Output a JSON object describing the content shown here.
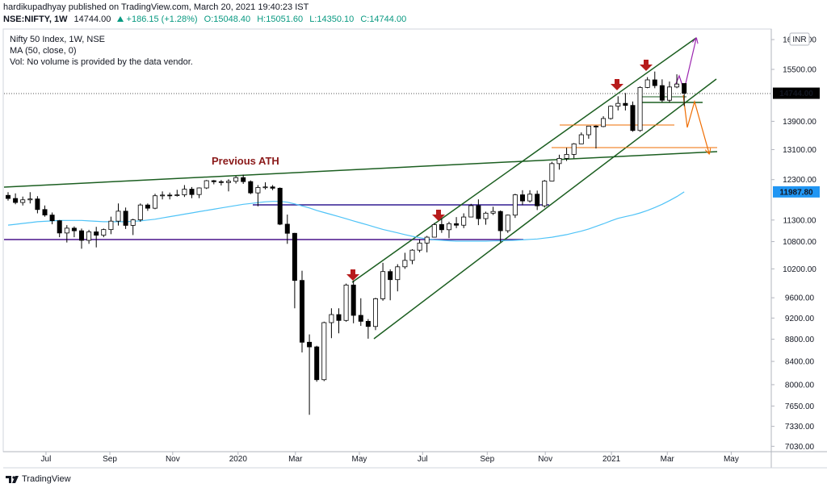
{
  "header": {
    "published": "hardikupadhyay published on TradingView.com, March 20, 2021 19:40:23 IST",
    "symbol": "NSE:NIFTY, 1W",
    "last": "14744.00",
    "change": "+186.15 (+1.28%)",
    "open": "O:15048.40",
    "high": "H:15051.60",
    "low": "L:14350.10",
    "close": "C:14744.00"
  },
  "chart_data": {
    "type": "candlestick",
    "title": "Nifty 50 Index, 1W, NSE",
    "volume_note": "Vol: No volume is provided by the data vendor.",
    "currency": "INR",
    "log": true,
    "grid": false,
    "ylim": [
      6951,
      16869
    ],
    "yticks": [
      {
        "value": 16500,
        "label": "16500.00"
      },
      {
        "value": 15500,
        "label": "15500.00"
      },
      {
        "value": 13900,
        "label": "13900.00"
      },
      {
        "value": 13100,
        "label": "13100.00"
      },
      {
        "value": 12300,
        "label": "12300.00"
      },
      {
        "value": 11300,
        "label": "11300.00"
      },
      {
        "value": 10800,
        "label": "10800.00"
      },
      {
        "value": 10200,
        "label": "10200.00"
      },
      {
        "value": 9600,
        "label": "9600.00"
      },
      {
        "value": 9200,
        "label": "9200.00"
      },
      {
        "value": 8800,
        "label": "8800.00"
      },
      {
        "value": 8400,
        "label": "8400.00"
      },
      {
        "value": 8000,
        "label": "8000.00"
      },
      {
        "value": 7650,
        "label": "7650.00"
      },
      {
        "value": 7330,
        "label": "7330.00"
      },
      {
        "value": 7030,
        "label": "7030.00"
      }
    ],
    "xlim": [
      -0.55,
      103.85
    ],
    "xticks": [
      {
        "value": 5.16,
        "label": "Jul"
      },
      {
        "value": 13.85,
        "label": "Sep"
      },
      {
        "value": 22.4,
        "label": "Nov"
      },
      {
        "value": 31.3,
        "label": "2020"
      },
      {
        "value": 39.1,
        "label": "Mar"
      },
      {
        "value": 47.8,
        "label": "May"
      },
      {
        "value": 56.4,
        "label": "Jul"
      },
      {
        "value": 65.2,
        "label": "Sep"
      },
      {
        "value": 73.1,
        "label": "Nov"
      },
      {
        "value": 82.1,
        "label": "2021"
      },
      {
        "value": 89.7,
        "label": "Mar"
      },
      {
        "value": 98.4,
        "label": "May"
      }
    ],
    "up_color": "#ffffff",
    "down_color": "#000000",
    "wick_color": "#000000",
    "ohlc": [
      [
        11900,
        11980,
        11770,
        11823
      ],
      [
        11823,
        11950,
        11680,
        11724
      ],
      [
        11724,
        11870,
        11650,
        11789
      ],
      [
        11789,
        11980,
        11700,
        11811
      ],
      [
        11811,
        11880,
        11460,
        11552
      ],
      [
        11552,
        11650,
        11380,
        11419
      ],
      [
        11419,
        11480,
        11200,
        11284
      ],
      [
        11284,
        11300,
        10900,
        10997
      ],
      [
        10997,
        11180,
        10780,
        11109
      ],
      [
        11109,
        11150,
        10900,
        11048
      ],
      [
        11048,
        11100,
        10640,
        10829
      ],
      [
        10829,
        11070,
        10750,
        11023
      ],
      [
        11023,
        11140,
        10670,
        10946
      ],
      [
        10946,
        11100,
        10900,
        11076
      ],
      [
        11076,
        11380,
        10970,
        11274
      ],
      [
        11274,
        11700,
        11170,
        11512
      ],
      [
        11512,
        11600,
        11090,
        11174
      ],
      [
        11174,
        11330,
        10950,
        11305
      ],
      [
        11305,
        11700,
        11260,
        11662
      ],
      [
        11662,
        11700,
        11520,
        11584
      ],
      [
        11584,
        11940,
        11560,
        11890
      ],
      [
        11890,
        12000,
        11800,
        11908
      ],
      [
        11908,
        11970,
        11800,
        11895
      ],
      [
        11895,
        12040,
        11870,
        11914
      ],
      [
        11914,
        12160,
        11860,
        12056
      ],
      [
        12056,
        12110,
        11830,
        11921
      ],
      [
        11921,
        12100,
        11830,
        12087
      ],
      [
        12087,
        12290,
        12060,
        12272
      ],
      [
        12272,
        12290,
        12180,
        12246
      ],
      [
        12246,
        12290,
        12150,
        12226
      ],
      [
        12226,
        12310,
        12000,
        12257
      ],
      [
        12257,
        12390,
        12200,
        12352
      ],
      [
        12352,
        12430,
        12190,
        12248
      ],
      [
        12248,
        12280,
        11930,
        11962
      ],
      [
        11962,
        12160,
        11630,
        12098
      ],
      [
        12098,
        12230,
        12050,
        12113
      ],
      [
        12113,
        12160,
        12030,
        12080
      ],
      [
        12080,
        12100,
        11180,
        11202
      ],
      [
        11202,
        11430,
        10750,
        10990
      ],
      [
        10990,
        11000,
        9390,
        9955
      ],
      [
        9955,
        10160,
        8560,
        8745
      ],
      [
        8745,
        8890,
        7510,
        8660
      ],
      [
        8660,
        8680,
        8050,
        8084
      ],
      [
        8084,
        9130,
        8060,
        9112
      ],
      [
        9112,
        9390,
        8820,
        9267
      ],
      [
        9267,
        9390,
        8910,
        9154
      ],
      [
        9154,
        9890,
        9130,
        9860
      ],
      [
        9860,
        9950,
        9100,
        9252
      ],
      [
        9252,
        9590,
        9050,
        9137
      ],
      [
        9137,
        9180,
        8810,
        9039
      ],
      [
        9039,
        9600,
        8970,
        9580
      ],
      [
        9580,
        10330,
        9540,
        10142
      ],
      [
        10142,
        10190,
        9550,
        9972
      ],
      [
        9972,
        10300,
        9730,
        10244
      ],
      [
        10244,
        10550,
        10200,
        10383
      ],
      [
        10383,
        10630,
        10300,
        10608
      ],
      [
        10608,
        10850,
        10560,
        10768
      ],
      [
        10768,
        10930,
        10560,
        10901
      ],
      [
        10901,
        11230,
        10900,
        11194
      ],
      [
        11194,
        11340,
        11000,
        11073
      ],
      [
        11073,
        11260,
        10880,
        11214
      ],
      [
        11214,
        11370,
        11110,
        11178
      ],
      [
        11178,
        11460,
        11110,
        11372
      ],
      [
        11372,
        11690,
        11370,
        11647
      ],
      [
        11647,
        11800,
        11180,
        11333
      ],
      [
        11333,
        11500,
        11190,
        11464
      ],
      [
        11464,
        11620,
        11420,
        11505
      ],
      [
        11505,
        11530,
        10790,
        11050
      ],
      [
        11050,
        11430,
        11000,
        11417
      ],
      [
        11417,
        11940,
        11350,
        11914
      ],
      [
        11914,
        12030,
        11660,
        11762
      ],
      [
        11762,
        12030,
        11720,
        11930
      ],
      [
        11930,
        12020,
        11540,
        11642
      ],
      [
        11642,
        12290,
        11600,
        12263
      ],
      [
        12263,
        12770,
        12260,
        12720
      ],
      [
        12720,
        12960,
        12560,
        12859
      ],
      [
        12859,
        13150,
        12790,
        12968
      ],
      [
        12968,
        13280,
        12860,
        13258
      ],
      [
        13258,
        13580,
        13260,
        13514
      ],
      [
        13514,
        13770,
        13400,
        13761
      ],
      [
        13761,
        13780,
        13130,
        13749
      ],
      [
        13749,
        14050,
        13730,
        13982
      ],
      [
        13982,
        14370,
        13950,
        14347
      ],
      [
        14347,
        14650,
        14220,
        14433
      ],
      [
        14433,
        14750,
        14220,
        14372
      ],
      [
        14372,
        14490,
        13600,
        13635
      ],
      [
        13635,
        14960,
        13600,
        14924
      ],
      [
        14924,
        15250,
        14900,
        15163
      ],
      [
        15163,
        15430,
        14900,
        14982
      ],
      [
        14982,
        15180,
        14470,
        14529
      ],
      [
        14529,
        15110,
        14460,
        14938
      ],
      [
        14938,
        15340,
        14900,
        15031
      ],
      [
        15048.4,
        15051.6,
        14350.1,
        14744
      ]
    ],
    "ma": {
      "name": "MA (50, close, 0)",
      "color": "#4fc3f7",
      "values": [
        11180,
        11200,
        11220,
        11240,
        11260,
        11270,
        11280,
        11290,
        11290,
        11290,
        11290,
        11280,
        11270,
        11260,
        11260,
        11260,
        11260,
        11270,
        11280,
        11300,
        11320,
        11350,
        11380,
        11410,
        11440,
        11470,
        11500,
        11530,
        11560,
        11590,
        11620,
        11650,
        11680,
        11700,
        11720,
        11740,
        11750,
        11750,
        11730,
        11690,
        11640,
        11590,
        11530,
        11480,
        11430,
        11380,
        11330,
        11280,
        11230,
        11180,
        11130,
        11080,
        11040,
        11000,
        10960,
        10920,
        10890,
        10860,
        10840,
        10830,
        10820,
        10810,
        10810,
        10810,
        10810,
        10810,
        10815,
        10820,
        10825,
        10830,
        10840,
        10850,
        10860,
        10880,
        10900,
        10930,
        10960,
        11000,
        11040,
        11090,
        11150,
        11210,
        11280,
        11340,
        11380,
        11420,
        11470,
        11530,
        11600,
        11680,
        11770,
        11870,
        11987.8
      ]
    },
    "price_tags": [
      {
        "value": 14744,
        "label": "14744.00",
        "color": "#000000"
      },
      {
        "value": 11987.8,
        "label": "11987.80",
        "color": "#2196f3"
      }
    ],
    "annotations": [
      {
        "text": "Previous ATH",
        "color": "#8b1a1a"
      }
    ]
  },
  "footer": {
    "brand": "TradingView"
  }
}
